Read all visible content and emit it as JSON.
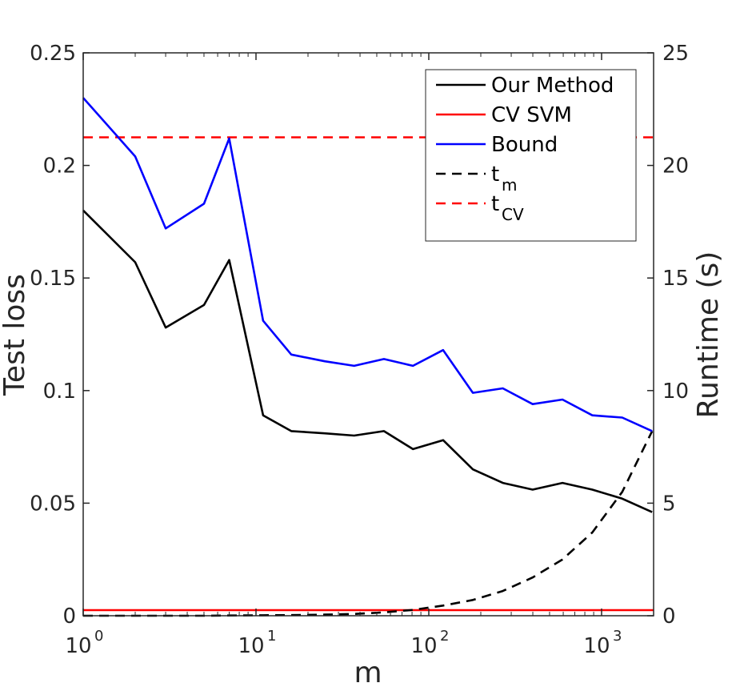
{
  "chart_data": {
    "type": "line",
    "xscale": "log",
    "xlim": [
      1,
      2000
    ],
    "ylim": [
      0,
      0.25
    ],
    "y2lim": [
      0,
      25
    ],
    "xlabel": "m",
    "ylabel": "Test loss",
    "y2label": "Runtime (s)",
    "xticks": [
      {
        "value": 1,
        "base": "10",
        "exp": "0"
      },
      {
        "value": 10,
        "base": "10",
        "exp": "1"
      },
      {
        "value": 100,
        "base": "10",
        "exp": "2"
      },
      {
        "value": 1000,
        "base": "10",
        "exp": "3"
      }
    ],
    "yticks": [
      {
        "value": 0,
        "label": "0"
      },
      {
        "value": 0.05,
        "label": "0.05"
      },
      {
        "value": 0.1,
        "label": "0.1"
      },
      {
        "value": 0.15,
        "label": "0.15"
      },
      {
        "value": 0.2,
        "label": "0.2"
      },
      {
        "value": 0.25,
        "label": "0.25"
      }
    ],
    "y2ticks": [
      {
        "value": 0,
        "label": "0"
      },
      {
        "value": 5,
        "label": "5"
      },
      {
        "value": 10,
        "label": "10"
      },
      {
        "value": 15,
        "label": "15"
      },
      {
        "value": 20,
        "label": "20"
      },
      {
        "value": 25,
        "label": "25"
      }
    ],
    "legend_position": "top-right",
    "series": [
      {
        "name": "Our Method",
        "label": "Our Method",
        "axis": "left",
        "color": "#000000",
        "dash": "solid",
        "x": [
          1,
          2,
          3,
          5,
          7,
          11,
          16,
          25,
          37,
          55,
          81,
          121,
          180,
          268,
          399,
          594,
          884,
          1317,
          1961
        ],
        "y": [
          0.18,
          0.157,
          0.128,
          0.138,
          0.158,
          0.089,
          0.082,
          0.081,
          0.08,
          0.082,
          0.074,
          0.078,
          0.065,
          0.059,
          0.056,
          0.059,
          0.056,
          0.052,
          0.046
        ]
      },
      {
        "name": "CV SVM",
        "label": "CV SVM",
        "axis": "left",
        "color": "#ff0000",
        "dash": "solid",
        "x": [
          1,
          2000
        ],
        "y": [
          0.0025,
          0.0025
        ]
      },
      {
        "name": "Bound",
        "label": "Bound",
        "axis": "left",
        "color": "#0000ff",
        "dash": "solid",
        "x": [
          1,
          2,
          3,
          5,
          7,
          11,
          16,
          25,
          37,
          55,
          81,
          121,
          180,
          268,
          399,
          594,
          884,
          1317,
          1961
        ],
        "y": [
          0.23,
          0.204,
          0.172,
          0.183,
          0.212,
          0.131,
          0.116,
          0.113,
          0.111,
          0.114,
          0.111,
          0.118,
          0.099,
          0.101,
          0.094,
          0.096,
          0.089,
          0.088,
          0.082
        ]
      },
      {
        "name": "t_m",
        "label": "t",
        "sub": "m",
        "axis": "right",
        "color": "#000000",
        "dash": "dashed",
        "x": [
          1,
          2,
          3,
          5,
          7,
          11,
          16,
          25,
          37,
          55,
          81,
          121,
          180,
          268,
          399,
          594,
          884,
          1317,
          1961
        ],
        "y": [
          0.0,
          0.0,
          0.0,
          0.0,
          0.01,
          0.02,
          0.03,
          0.05,
          0.08,
          0.15,
          0.26,
          0.45,
          0.7,
          1.1,
          1.7,
          2.5,
          3.7,
          5.5,
          8.2
        ]
      },
      {
        "name": "t_CV",
        "label": "t",
        "sub": "CV",
        "axis": "right",
        "color": "#ff0000",
        "dash": "dashed",
        "x": [
          1,
          2000
        ],
        "y": [
          21.25,
          21.25
        ]
      }
    ]
  }
}
